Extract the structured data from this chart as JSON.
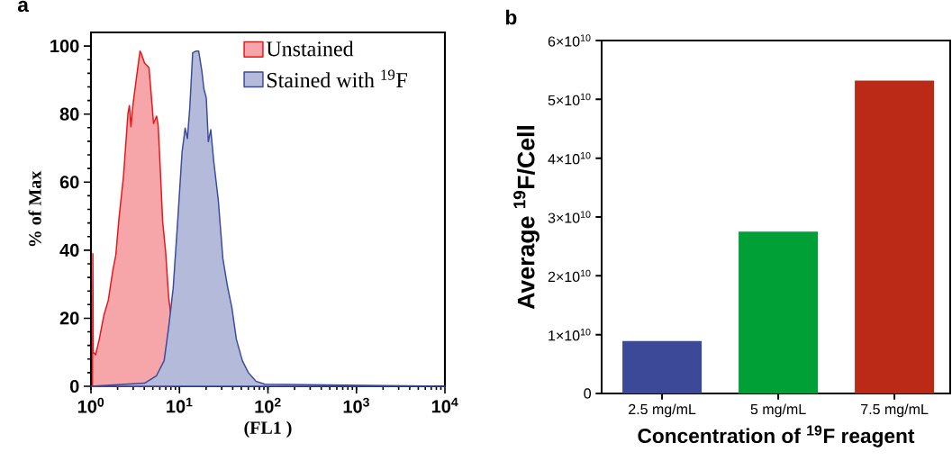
{
  "chart_data": [
    {
      "type": "area",
      "log": "x",
      "xlabel": "(FL1 )",
      "ylabel": "% of Max",
      "annotations": [
        "a"
      ],
      "xlim": [
        1,
        10000
      ],
      "ylim": [
        0,
        104
      ],
      "xticks": [
        {
          "value": 1,
          "label": "10$^{0}$"
        },
        {
          "value": 10,
          "label": "10$^{1}$"
        },
        {
          "value": 100,
          "label": "10$^{2}$"
        },
        {
          "value": 1000,
          "label": "10$^{3}$"
        },
        {
          "value": 10000,
          "label": "10$^{4}$"
        }
      ],
      "yticks": [
        0,
        20,
        40,
        60,
        80,
        100
      ],
      "legend": "top right",
      "series": [
        {
          "name": "Unstained",
          "color": "#e8151b",
          "x": [
            1.04,
            1.05,
            1.06,
            1.13,
            1.24,
            1.4,
            1.57,
            1.77,
            1.91,
            2.07,
            2.33,
            2.62,
            2.72,
            2.83,
            2.99,
            3.24,
            3.58,
            3.73,
            4.03,
            4.53,
            5.1,
            5.51,
            5.74,
            5.97,
            6.46,
            6.98,
            7.55,
            8.16
          ],
          "values": [
            0,
            39,
            10,
            9.3,
            13.8,
            20.9,
            25.3,
            34.2,
            38.6,
            49.2,
            61.7,
            80.3,
            82.5,
            76.3,
            83,
            90,
            98.5,
            97.6,
            95,
            93.6,
            77.2,
            79.4,
            76.8,
            67.9,
            48.4,
            39.5,
            26.2,
            19.1
          ]
        },
        {
          "name": "Stained with $^{19}$F",
          "color": "#3a4a9c",
          "x": [
            1,
            4.03,
            5.5,
            6.71,
            7.55,
            8.49,
            9.54,
            10.7,
            11.6,
            12.3,
            13.1,
            14.1,
            15.3,
            16.5,
            17.9,
            18.9,
            20.1,
            21.2,
            22.6,
            24.4,
            27.5,
            30.9,
            34.7,
            39.1,
            44.0,
            51.4,
            60.1,
            73.1,
            92.5,
            10000
          ],
          "values": [
            0,
            0.9,
            3.1,
            7.5,
            17.3,
            28.8,
            48.4,
            68.8,
            75.9,
            72.8,
            82.1,
            98,
            98.5,
            98.5,
            92.7,
            87.4,
            84.7,
            71.9,
            75.4,
            66.1,
            54.6,
            37.7,
            29.7,
            23.1,
            13.8,
            7.5,
            4.0,
            1.5,
            0.6,
            0
          ]
        }
      ]
    },
    {
      "type": "bar",
      "xlabel": "Concentration of $^{19}$F reagent",
      "ylabel": "Average $^{19}$F/Cell",
      "annotations": [
        "b"
      ],
      "categories": [
        "2.5 mg/mL",
        "5 mg/mL",
        "7.5 mg/mL"
      ],
      "values": [
        8900000000.0,
        27500000000.0,
        53200000000.0
      ],
      "colors": [
        "#3c4898",
        "#00a037",
        "#bb2a16"
      ],
      "ylim": [
        0,
        60000000000.0
      ],
      "yticks": [
        0,
        {
          "value": 10000000000.0,
          "label": "1×10$^{10}$"
        },
        {
          "value": 20000000000.0,
          "label": "2×10$^{10}$"
        },
        {
          "value": 30000000000.0,
          "label": "3×10$^{10}$"
        },
        {
          "value": 40000000000.0,
          "label": "4×10$^{10}$"
        },
        {
          "value": 50000000000.0,
          "label": "5×10$^{10}$"
        },
        {
          "value": 60000000000.0,
          "label": "6×10$^{10}$"
        }
      ]
    }
  ]
}
